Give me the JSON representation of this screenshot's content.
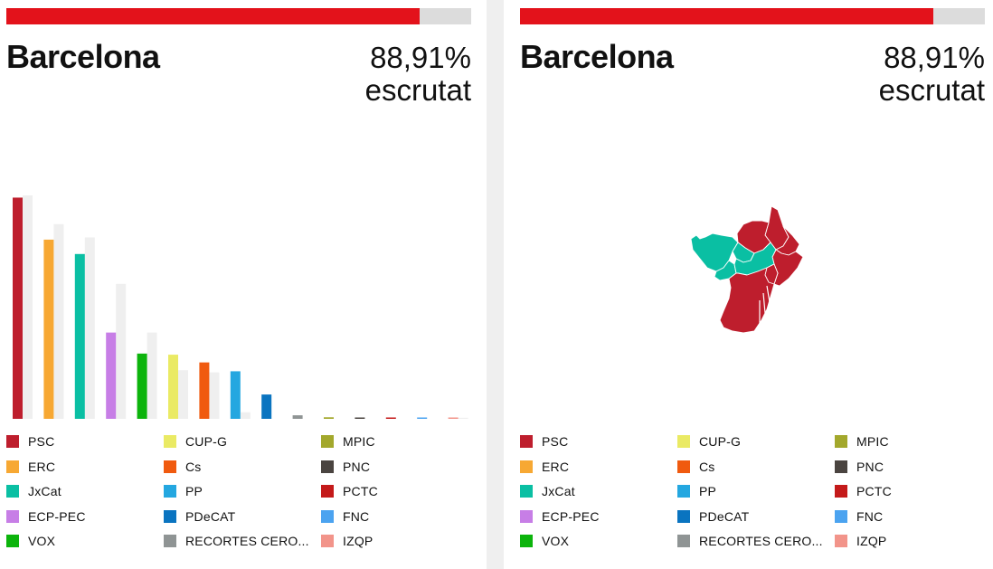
{
  "panels": [
    {
      "city": "Barcelona",
      "percent": "88,91%",
      "percent_label": "escrutat",
      "progress": 0.8891
    },
    {
      "city": "Barcelona",
      "percent": "88,91%",
      "percent_label": "escrutat",
      "progress": 0.8891
    }
  ],
  "colors": {
    "progress_fill": "#e3121b",
    "progress_track": "#dcdcdc",
    "previous_bar": "#efefef",
    "map_psc": "#be1e2d",
    "map_jxcat": "#0abfa3"
  },
  "legend": [
    {
      "label": "PSC",
      "color": "#be1e2d"
    },
    {
      "label": "ERC",
      "color": "#f7a833"
    },
    {
      "label": "JxCat",
      "color": "#0abfa3"
    },
    {
      "label": "ECP-PEC",
      "color": "#c77ee6"
    },
    {
      "label": "VOX",
      "color": "#0cb40c"
    },
    {
      "label": "CUP-G",
      "color": "#eaea64"
    },
    {
      "label": "Cs",
      "color": "#f05a0f"
    },
    {
      "label": "PP",
      "color": "#24a7e0"
    },
    {
      "label": "PDeCAT",
      "color": "#0a74c0"
    },
    {
      "label": "RECORTES CERO...",
      "color": "#8f9494"
    },
    {
      "label": "MPIC",
      "color": "#a3a82c"
    },
    {
      "label": "PNC",
      "color": "#4a4440"
    },
    {
      "label": "PCTC",
      "color": "#c41a1a"
    },
    {
      "label": "FNC",
      "color": "#4ba3f0"
    },
    {
      "label": "IZQP",
      "color": "#f2948a"
    }
  ],
  "chart_data": {
    "type": "bar",
    "categories": [
      "PSC",
      "ERC",
      "JxCat",
      "ECP-PEC",
      "VOX",
      "CUP-G",
      "Cs",
      "PP",
      "PDeCAT",
      "RECORTES CERO...",
      "MPIC",
      "PNC",
      "PCTC",
      "FNC",
      "IZQP"
    ],
    "series": [
      {
        "values": [
          100,
          81,
          74.5,
          39,
          29.5,
          29,
          25.5,
          21.5,
          11,
          1.6,
          0.7,
          0.6,
          0.5,
          0.4,
          0.3
        ]
      },
      {
        "values": [
          101,
          88,
          82,
          61,
          39,
          22,
          21,
          3,
          0,
          0,
          0,
          0,
          0,
          0,
          0.5
        ]
      }
    ],
    "ylim": [
      0,
      101
    ],
    "grid": false,
    "legend_placement": "bottom"
  }
}
